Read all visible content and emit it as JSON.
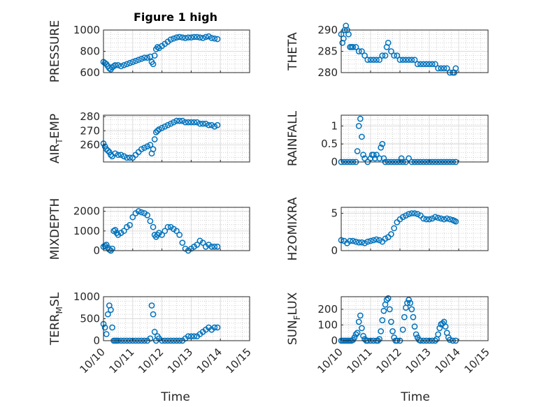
{
  "figure": {
    "title": "Figure 1 high",
    "xlabel": "Time"
  },
  "colors": {
    "marker": "#0072bd",
    "axis": "#262626",
    "grid": "#dcdcdc",
    "minor_grid": "#c8c8c8"
  },
  "chart_data": [
    {
      "type": "scatter",
      "ylabel": "PRESSURE",
      "show_title": true,
      "ylim": [
        600,
        1000
      ],
      "yticks": [
        600,
        800,
        1000
      ],
      "ytick_labels": [
        "600",
        "800",
        "1000"
      ],
      "xticks": [
        "10/10",
        "10/11",
        "10/12",
        "10/13",
        "10/14",
        "10/15"
      ],
      "xlim": [
        0,
        5
      ],
      "show_xticks": false,
      "x": [
        0.0,
        0.05,
        0.1,
        0.15,
        0.2,
        0.25,
        0.3,
        0.35,
        0.4,
        0.5,
        0.6,
        0.7,
        0.8,
        0.9,
        1.0,
        1.1,
        1.2,
        1.3,
        1.4,
        1.5,
        1.6,
        1.65,
        1.7,
        1.75,
        1.8,
        1.85,
        1.9,
        2.0,
        2.1,
        2.2,
        2.3,
        2.4,
        2.5,
        2.6,
        2.7,
        2.8,
        2.9,
        3.0,
        3.1,
        3.2,
        3.3,
        3.4,
        3.5,
        3.6,
        3.7,
        3.8,
        3.9
      ],
      "y": [
        700,
        690,
        680,
        660,
        640,
        630,
        650,
        660,
        670,
        670,
        660,
        670,
        680,
        690,
        700,
        710,
        720,
        730,
        740,
        740,
        750,
        700,
        680,
        760,
        820,
        840,
        830,
        850,
        870,
        890,
        910,
        920,
        930,
        935,
        930,
        925,
        930,
        930,
        935,
        935,
        930,
        925,
        935,
        940,
        925,
        920,
        915
      ]
    },
    {
      "type": "scatter",
      "ylabel": "THETA",
      "show_title": false,
      "ylim": [
        280,
        290
      ],
      "yticks": [
        280,
        285,
        290
      ],
      "ytick_labels": [
        "280",
        "285",
        "290"
      ],
      "xticks": [
        "10/10",
        "10/11",
        "10/12",
        "10/13",
        "10/14",
        "10/15"
      ],
      "xlim": [
        0,
        5
      ],
      "show_xticks": false,
      "x": [
        0.0,
        0.04,
        0.08,
        0.12,
        0.16,
        0.2,
        0.25,
        0.3,
        0.35,
        0.4,
        0.5,
        0.6,
        0.7,
        0.8,
        0.9,
        1.0,
        1.1,
        1.2,
        1.3,
        1.4,
        1.5,
        1.55,
        1.6,
        1.7,
        1.8,
        1.9,
        2.0,
        2.1,
        2.2,
        2.3,
        2.4,
        2.5,
        2.6,
        2.7,
        2.8,
        2.9,
        3.0,
        3.1,
        3.2,
        3.3,
        3.4,
        3.5,
        3.6,
        3.7,
        3.8,
        3.85,
        3.9
      ],
      "y": [
        289,
        287,
        288,
        290,
        291,
        290,
        289,
        286,
        286,
        286,
        286,
        285,
        285,
        284,
        283,
        283,
        283,
        283,
        283,
        284,
        284,
        286,
        287,
        285,
        284,
        284,
        283,
        283,
        283,
        283,
        283,
        283,
        282,
        282,
        282,
        282,
        282,
        282,
        282,
        281,
        281,
        281,
        281,
        280,
        280,
        280,
        281
      ]
    },
    {
      "type": "scatter",
      "ylabel": "AIR",
      "ylabel_sub": "T",
      "ylabel_suffix": "EMP",
      "show_title": false,
      "ylim": [
        248,
        281
      ],
      "yticks": [
        260,
        270,
        280
      ],
      "ytick_labels": [
        "260",
        "270",
        "280"
      ],
      "xticks": [
        "10/10",
        "10/11",
        "10/12",
        "10/13",
        "10/14",
        "10/15"
      ],
      "xlim": [
        0,
        5
      ],
      "show_xticks": false,
      "x": [
        0.0,
        0.05,
        0.1,
        0.15,
        0.2,
        0.25,
        0.3,
        0.4,
        0.5,
        0.6,
        0.7,
        0.8,
        0.9,
        1.0,
        1.1,
        1.2,
        1.3,
        1.4,
        1.5,
        1.6,
        1.65,
        1.7,
        1.75,
        1.8,
        1.85,
        1.9,
        2.0,
        2.1,
        2.2,
        2.3,
        2.4,
        2.5,
        2.6,
        2.7,
        2.8,
        2.9,
        3.0,
        3.1,
        3.2,
        3.3,
        3.4,
        3.5,
        3.6,
        3.7,
        3.8,
        3.9
      ],
      "y": [
        261,
        259,
        257,
        256,
        255,
        253,
        252,
        254,
        253,
        253,
        252,
        251,
        251,
        251,
        253,
        255,
        257,
        258,
        259,
        260,
        254,
        257,
        264,
        269,
        270,
        271,
        272,
        273,
        274,
        275,
        276,
        277,
        277,
        277,
        276,
        276,
        276,
        276,
        276,
        275,
        275,
        275,
        274,
        274,
        273,
        274
      ]
    },
    {
      "type": "scatter",
      "ylabel": "RAINFALL",
      "show_title": false,
      "ylim": [
        0,
        1.3
      ],
      "yticks": [
        0,
        0.5,
        1
      ],
      "ytick_labels": [
        "0",
        "0.5",
        "1"
      ],
      "xticks": [
        "10/10",
        "10/11",
        "10/12",
        "10/13",
        "10/14",
        "10/15"
      ],
      "xlim": [
        0,
        5
      ],
      "show_xticks": false,
      "x": [
        0.0,
        0.1,
        0.2,
        0.3,
        0.4,
        0.5,
        0.55,
        0.6,
        0.65,
        0.7,
        0.75,
        0.8,
        0.9,
        1.0,
        1.05,
        1.1,
        1.15,
        1.2,
        1.3,
        1.35,
        1.4,
        1.45,
        1.5,
        1.6,
        1.7,
        1.8,
        1.9,
        2.0,
        2.05,
        2.1,
        2.2,
        2.3,
        2.4,
        2.5,
        2.6,
        2.7,
        2.8,
        2.9,
        3.0,
        3.1,
        3.2,
        3.3,
        3.4,
        3.5,
        3.6,
        3.7,
        3.8,
        3.9
      ],
      "y": [
        0,
        0,
        0,
        0,
        0,
        0,
        0.3,
        1.0,
        1.2,
        0.7,
        0.2,
        0.1,
        0,
        0.1,
        0.2,
        0.2,
        0.1,
        0.2,
        0.1,
        0.4,
        0.5,
        0.1,
        0,
        0,
        0,
        0,
        0,
        0,
        0.1,
        0,
        0,
        0.1,
        0,
        0,
        0,
        0,
        0,
        0,
        0,
        0,
        0,
        0,
        0,
        0,
        0,
        0,
        0,
        0
      ]
    },
    {
      "type": "scatter",
      "ylabel": "MIXDEPTH",
      "show_title": false,
      "ylim": [
        0,
        2200
      ],
      "yticks": [
        0,
        1000,
        2000
      ],
      "ytick_labels": [
        "0",
        "1000",
        "2000"
      ],
      "xticks": [
        "10/10",
        "10/11",
        "10/12",
        "10/13",
        "10/14",
        "10/15"
      ],
      "xlim": [
        0,
        5
      ],
      "show_xticks": false,
      "x": [
        0.0,
        0.05,
        0.1,
        0.15,
        0.2,
        0.25,
        0.3,
        0.35,
        0.4,
        0.45,
        0.5,
        0.6,
        0.7,
        0.8,
        0.9,
        1.0,
        1.1,
        1.2,
        1.3,
        1.4,
        1.5,
        1.6,
        1.7,
        1.75,
        1.8,
        1.85,
        1.9,
        2.0,
        2.1,
        2.2,
        2.3,
        2.4,
        2.5,
        2.6,
        2.7,
        2.8,
        2.9,
        3.0,
        3.1,
        3.2,
        3.3,
        3.4,
        3.5,
        3.6,
        3.7,
        3.8,
        3.9
      ],
      "y": [
        200,
        250,
        300,
        150,
        50,
        0,
        100,
        1000,
        1050,
        900,
        800,
        900,
        1000,
        1200,
        1300,
        1700,
        1900,
        2000,
        1950,
        1900,
        1800,
        1500,
        1200,
        800,
        700,
        800,
        900,
        800,
        1000,
        1200,
        1200,
        1100,
        1000,
        800,
        400,
        100,
        0,
        100,
        200,
        300,
        500,
        400,
        200,
        300,
        200,
        200,
        200
      ]
    },
    {
      "type": "scatter",
      "ylabel": "H2OMIXRA",
      "show_title": false,
      "ylim": [
        0,
        5.8
      ],
      "yticks": [
        0,
        5
      ],
      "ytick_labels": [
        "0",
        "5"
      ],
      "xticks": [
        "10/10",
        "10/11",
        "10/12",
        "10/13",
        "10/14",
        "10/15"
      ],
      "xlim": [
        0,
        5
      ],
      "show_xticks": false,
      "x": [
        0.0,
        0.1,
        0.2,
        0.3,
        0.4,
        0.5,
        0.6,
        0.7,
        0.8,
        0.9,
        1.0,
        1.1,
        1.2,
        1.3,
        1.4,
        1.5,
        1.6,
        1.7,
        1.8,
        1.9,
        2.0,
        2.1,
        2.2,
        2.3,
        2.4,
        2.5,
        2.6,
        2.7,
        2.8,
        2.9,
        3.0,
        3.1,
        3.2,
        3.3,
        3.4,
        3.5,
        3.6,
        3.7,
        3.8,
        3.85,
        3.9
      ],
      "y": [
        1.4,
        1.3,
        1.0,
        1.3,
        1.3,
        1.2,
        1.1,
        1.1,
        1.0,
        1.2,
        1.3,
        1.4,
        1.5,
        1.4,
        1.2,
        1.6,
        1.8,
        2.2,
        3.0,
        3.8,
        4.2,
        4.5,
        4.7,
        4.9,
        5.0,
        5.0,
        4.9,
        4.7,
        4.3,
        4.2,
        4.2,
        4.3,
        4.5,
        4.4,
        4.3,
        4.2,
        4.3,
        4.2,
        4.1,
        4.0,
        3.9
      ]
    },
    {
      "type": "scatter",
      "ylabel": "TERR",
      "ylabel_sub": "M",
      "ylabel_suffix": "SL",
      "show_title": false,
      "ylim": [
        0,
        1000
      ],
      "yticks": [
        0,
        500,
        1000
      ],
      "ytick_labels": [
        "0",
        "500",
        "1000"
      ],
      "xticks": [
        "10/10",
        "10/11",
        "10/12",
        "10/13",
        "10/14",
        "10/15"
      ],
      "xlim": [
        0,
        5
      ],
      "show_xticks": true,
      "x": [
        0.0,
        0.05,
        0.1,
        0.15,
        0.2,
        0.25,
        0.3,
        0.35,
        0.4,
        0.45,
        0.5,
        0.6,
        0.7,
        0.8,
        0.9,
        1.0,
        1.1,
        1.2,
        1.3,
        1.4,
        1.5,
        1.6,
        1.65,
        1.7,
        1.75,
        1.8,
        1.85,
        1.9,
        2.0,
        2.1,
        2.2,
        2.3,
        2.4,
        2.5,
        2.6,
        2.7,
        2.8,
        2.9,
        3.0,
        3.1,
        3.2,
        3.3,
        3.4,
        3.5,
        3.6,
        3.7,
        3.8,
        3.9
      ],
      "y": [
        380,
        300,
        150,
        600,
        800,
        700,
        300,
        0,
        0,
        0,
        0,
        0,
        0,
        0,
        0,
        0,
        0,
        0,
        0,
        0,
        0,
        50,
        800,
        600,
        200,
        0,
        100,
        50,
        0,
        0,
        0,
        0,
        0,
        0,
        0,
        0,
        50,
        100,
        100,
        100,
        100,
        150,
        200,
        250,
        300,
        250,
        300,
        300
      ]
    },
    {
      "type": "scatter",
      "ylabel": "SUN",
      "ylabel_sub": "F",
      "ylabel_suffix": "LUX",
      "show_title": false,
      "ylim": [
        0,
        280
      ],
      "yticks": [
        0,
        100,
        200
      ],
      "ytick_labels": [
        "0",
        "100",
        "200"
      ],
      "xticks": [
        "10/10",
        "10/11",
        "10/12",
        "10/13",
        "10/14",
        "10/15"
      ],
      "xlim": [
        0,
        5
      ],
      "show_xticks": true,
      "x": [
        0.0,
        0.05,
        0.1,
        0.15,
        0.2,
        0.25,
        0.3,
        0.35,
        0.4,
        0.45,
        0.5,
        0.55,
        0.6,
        0.65,
        0.7,
        0.75,
        0.8,
        0.85,
        0.9,
        1.0,
        1.1,
        1.2,
        1.25,
        1.3,
        1.35,
        1.4,
        1.45,
        1.5,
        1.55,
        1.6,
        1.65,
        1.7,
        1.75,
        1.8,
        1.85,
        1.9,
        2.0,
        2.1,
        2.15,
        2.2,
        2.25,
        2.3,
        2.35,
        2.4,
        2.45,
        2.5,
        2.55,
        2.6,
        2.65,
        2.7,
        2.8,
        2.9,
        3.0,
        3.1,
        3.2,
        3.25,
        3.3,
        3.35,
        3.4,
        3.45,
        3.5,
        3.55,
        3.6,
        3.65,
        3.7,
        3.8,
        3.9
      ],
      "y": [
        0,
        0,
        0,
        0,
        0,
        0,
        0,
        0,
        5,
        20,
        40,
        50,
        120,
        160,
        80,
        30,
        10,
        0,
        0,
        0,
        0,
        0,
        0,
        10,
        60,
        130,
        190,
        230,
        260,
        270,
        200,
        120,
        60,
        20,
        0,
        0,
        0,
        70,
        150,
        210,
        240,
        260,
        240,
        200,
        150,
        90,
        40,
        20,
        5,
        0,
        0,
        0,
        0,
        0,
        0,
        10,
        40,
        80,
        105,
        110,
        120,
        90,
        50,
        20,
        5,
        0,
        0
      ]
    }
  ]
}
